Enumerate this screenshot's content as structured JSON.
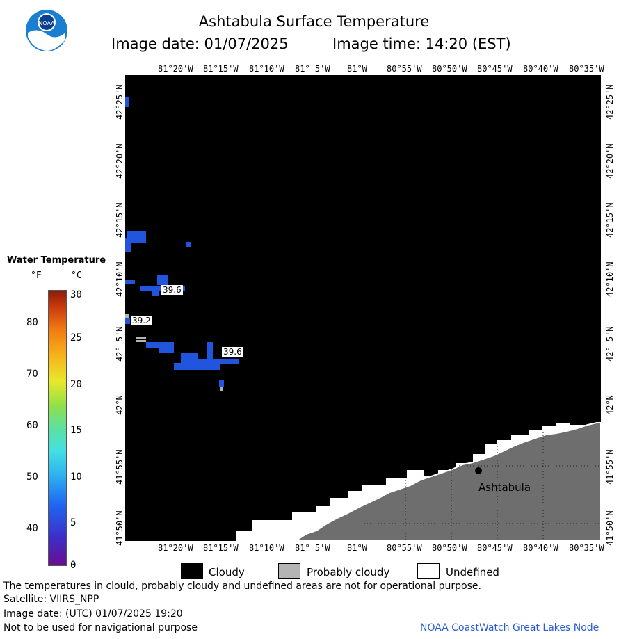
{
  "header": {
    "title": "Ashtabula Surface Temperature",
    "date_label": "Image date: 01/07/2025",
    "time_label": "Image time: 14:20 (EST)"
  },
  "logo": {
    "text": "NOAA"
  },
  "axes": {
    "lon_labels": [
      "81°20'W",
      "81°15'W",
      "81°10'W",
      "81° 5'W",
      "81°W",
      "80°55'W",
      "80°50'W",
      "80°45'W",
      "80°40'W",
      "80°35'W"
    ],
    "lat_labels": [
      "42°25'N",
      "42°20'N",
      "42°15'N",
      "42°10'N",
      "42° 5'N",
      "42°N",
      "41°55'N",
      "41°50'N"
    ]
  },
  "colorbar": {
    "title": "Water Temperature",
    "unit_f": "°F",
    "unit_c": "°C",
    "f_ticks": [
      "80",
      "70",
      "60",
      "50",
      "40"
    ],
    "c_ticks": [
      "30",
      "25",
      "20",
      "15",
      "10",
      "5",
      "0"
    ]
  },
  "map": {
    "place_label": "Ashtabula",
    "temp_labels": [
      "39.6",
      "39.2",
      "39.6"
    ]
  },
  "legend": {
    "cloudy": "Cloudy",
    "probably_cloudy": "Probably cloudy",
    "undefined": "Undefined"
  },
  "footer": {
    "disclaimer": "The temperatures in clould, probably cloudy and undefined areas are not for operational purpose.",
    "satellite": "Satellite: VIIRS_NPP",
    "utc_date": "Image date: (UTC) 01/07/2025  19:20",
    "nav_warning": "Not to be used for navigational purpose",
    "credit": "NOAA CoastWatch Great Lakes Node"
  },
  "colors": {
    "water_blue": "#2255dd",
    "cloudy": "#000000",
    "probably_cloudy": "#b4b4b4",
    "land": "#6e6e6e",
    "credit_blue": "#2a5bd7"
  }
}
